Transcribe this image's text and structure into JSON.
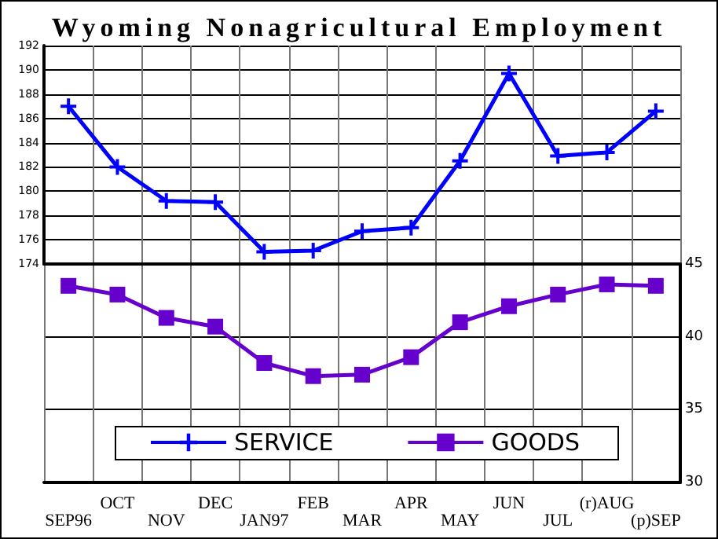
{
  "chart_data": [
    {
      "type": "line",
      "title": "Wyoming Nonagricultural Employment",
      "series": [
        {
          "name": "SERVICE",
          "color": "#0000ff",
          "marker": "cross",
          "values": [
            187.0,
            182.0,
            179.2,
            179.1,
            175.0,
            175.1,
            176.7,
            177.0,
            182.5,
            189.7,
            182.9,
            183.2,
            186.6
          ]
        }
      ],
      "ylim": [
        174,
        192
      ],
      "yticks": [
        174,
        176,
        178,
        180,
        182,
        184,
        186,
        188,
        190,
        192
      ],
      "grid": true,
      "legend": "bottom",
      "tick_labels": "y"
    },
    {
      "type": "line",
      "categories": [
        "SEP96",
        "OCT",
        "NOV",
        "DEC",
        "JAN97",
        "FEB",
        "MAR",
        "APR",
        "MAY",
        "JUN",
        "JUL",
        "(r)AUG",
        "(p)SEP"
      ],
      "series": [
        {
          "name": "GOODS",
          "color": "#6600cc",
          "marker": "square",
          "values": [
            43.5,
            42.9,
            41.3,
            40.7,
            38.2,
            37.3,
            37.4,
            38.6,
            41.0,
            42.1,
            42.9,
            43.6,
            43.5
          ]
        }
      ],
      "ylim": [
        30,
        45
      ],
      "yticks": [
        30,
        35,
        40,
        45
      ],
      "grid": true,
      "legend": "bottom"
    }
  ]
}
